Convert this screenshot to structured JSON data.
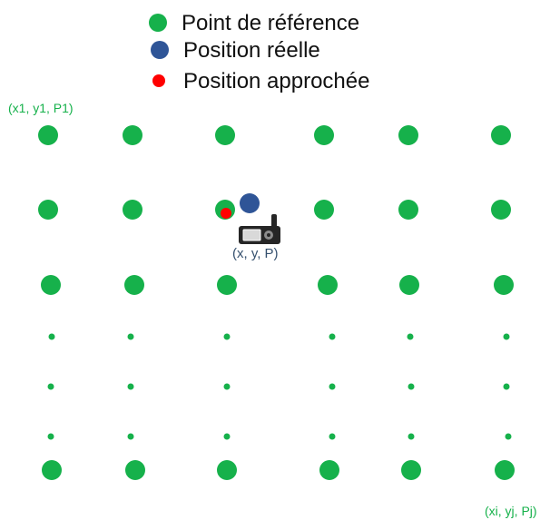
{
  "colors": {
    "reference": "#16b14b",
    "real": "#2f5597",
    "approx": "#ff0000",
    "device": "#262626",
    "position_label": "#35506e"
  },
  "legend": {
    "items": [
      {
        "label": "Point de référence",
        "marker": "green-circle"
      },
      {
        "label": "Position réelle",
        "marker": "blue-circle"
      },
      {
        "label": "Position approchée",
        "marker": "red-circle"
      }
    ]
  },
  "labels": {
    "top_left": "(x1, y1, P1)",
    "bottom_right": "(xi, yj, Pj)",
    "position": "(x, y, P)"
  },
  "grid": {
    "columns": 6,
    "rows": 7,
    "large_rows": [
      0,
      1,
      2,
      6
    ],
    "small_rows": [
      3,
      4,
      5
    ],
    "device_icon": "gps-handheld-icon"
  }
}
